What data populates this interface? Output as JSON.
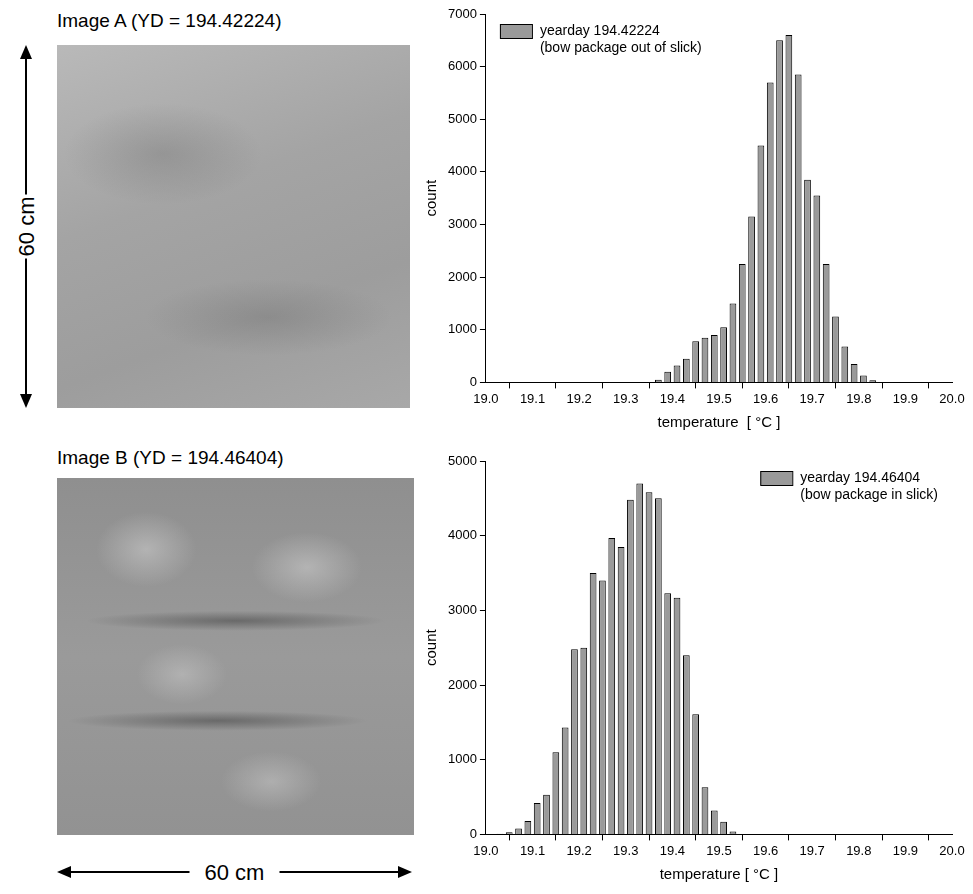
{
  "images": [
    {
      "title": "Image A (YD = 194.42224)"
    },
    {
      "title": "Image B (YD = 194.46404)"
    }
  ],
  "scale_labels": {
    "vertical": "60 cm",
    "horizontal": "60 cm"
  },
  "chart_data": [
    {
      "type": "histogram",
      "xlabel": "temperature  [ °C ]",
      "ylabel": "count",
      "bins": [
        19.36,
        19.38,
        19.4,
        19.42,
        19.44,
        19.46,
        19.48,
        19.5,
        19.52,
        19.54,
        19.56,
        19.58,
        19.6,
        19.62,
        19.64,
        19.66,
        19.68,
        19.7,
        19.72,
        19.74,
        19.76,
        19.78,
        19.8,
        19.82,
        19.84
      ],
      "series": [
        {
          "name": "yearday 194.42224",
          "annotation": "(bow package out of slick)",
          "color": "#9a9a9a",
          "values": [
            50,
            200,
            320,
            450,
            780,
            850,
            900,
            1050,
            1500,
            2250,
            3150,
            4500,
            5700,
            6500,
            6600,
            5850,
            3850,
            3550,
            2250,
            1250,
            680,
            350,
            130,
            40
          ]
        }
      ],
      "xlim": [
        19.0,
        20.0
      ],
      "xticks": [
        {
          "value": 19.0,
          "label": "19.0"
        },
        19.1,
        19.2,
        19.3,
        19.4,
        19.5,
        19.6,
        19.7,
        19.8,
        19.9,
        {
          "value": 20.0,
          "label": "20.0"
        }
      ],
      "ylim": [
        0,
        7000
      ],
      "yticks": [
        0,
        1000,
        2000,
        3000,
        4000,
        5000,
        6000,
        7000
      ],
      "grid": false,
      "legend": "upper left"
    },
    {
      "type": "histogram",
      "xlabel": "temperature [ °C ]",
      "ylabel": "count",
      "bins": [
        19.02,
        19.04,
        19.06,
        19.08,
        19.1,
        19.12,
        19.14,
        19.16,
        19.18,
        19.2,
        19.22,
        19.24,
        19.26,
        19.28,
        19.3,
        19.32,
        19.34,
        19.36,
        19.38,
        19.4,
        19.42,
        19.44,
        19.46,
        19.48,
        19.5,
        19.52,
        19.54
      ],
      "series": [
        {
          "name": "yearday 194.46404",
          "annotation": "(bow package in slick)",
          "color": "#9a9a9a",
          "values": [
            10,
            30,
            80,
            180,
            420,
            530,
            1100,
            1430,
            2480,
            2500,
            3500,
            3400,
            3970,
            3850,
            4480,
            4700,
            4580,
            4500,
            3230,
            3170,
            2400,
            1610,
            630,
            320,
            170,
            40
          ]
        }
      ],
      "xlim": [
        19.0,
        20.0
      ],
      "xticks": [
        {
          "value": 19.0,
          "label": "19.0"
        },
        19.1,
        19.2,
        19.3,
        19.4,
        19.5,
        19.6,
        19.7,
        19.8,
        19.9,
        {
          "value": 20.0,
          "label": "20.0"
        }
      ],
      "ylim": [
        0,
        5000
      ],
      "yticks": [
        0,
        1000,
        2000,
        3000,
        4000,
        5000
      ],
      "grid": false,
      "legend": "upper right"
    }
  ]
}
